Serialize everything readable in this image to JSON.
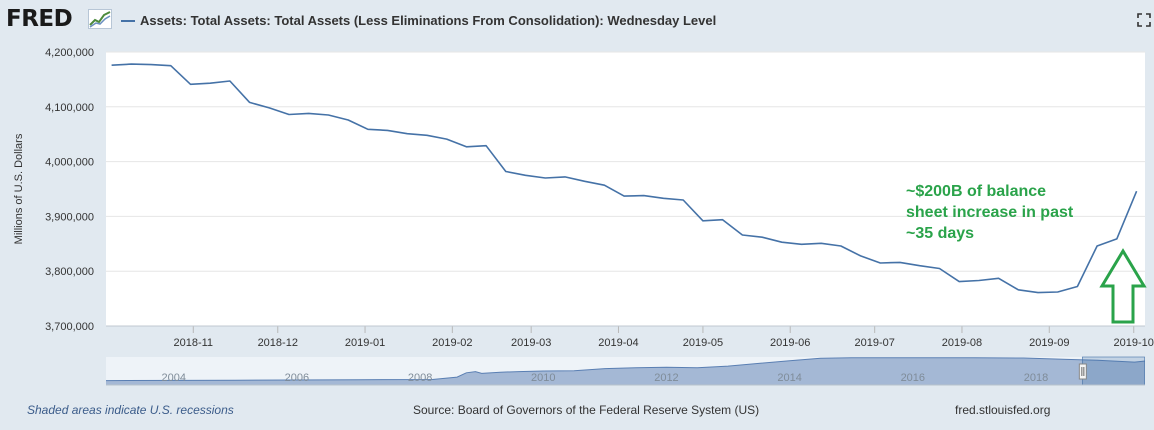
{
  "logo": {
    "text": "FRED"
  },
  "icons": [
    "fred-graph-icon",
    "expand-icon",
    "navigator-handle-icon",
    "up-arrow-icon"
  ],
  "colors": {
    "series": "#4572a7",
    "background": "#e1e9f0",
    "plot_background": "#ffffff",
    "annotation": "#2aa34a",
    "navigator_fill": "#8ba4c9"
  },
  "chart_data": {
    "type": "line",
    "title": "",
    "series": [
      {
        "name": "Assets: Total Assets: Total Assets (Less Eliminations From Consolidation): Wednesday Level",
        "x": [
          "2018-10-03",
          "2018-10-10",
          "2018-10-17",
          "2018-10-24",
          "2018-10-31",
          "2018-11-07",
          "2018-11-14",
          "2018-11-21",
          "2018-11-28",
          "2018-12-05",
          "2018-12-12",
          "2018-12-19",
          "2018-12-26",
          "2019-01-02",
          "2019-01-09",
          "2019-01-16",
          "2019-01-23",
          "2019-01-30",
          "2019-02-06",
          "2019-02-13",
          "2019-02-20",
          "2019-02-27",
          "2019-03-06",
          "2019-03-13",
          "2019-03-20",
          "2019-03-27",
          "2019-04-03",
          "2019-04-10",
          "2019-04-17",
          "2019-04-24",
          "2019-05-01",
          "2019-05-08",
          "2019-05-15",
          "2019-05-22",
          "2019-05-29",
          "2019-06-05",
          "2019-06-12",
          "2019-06-19",
          "2019-06-26",
          "2019-07-03",
          "2019-07-10",
          "2019-07-17",
          "2019-07-24",
          "2019-07-31",
          "2019-08-07",
          "2019-08-14",
          "2019-08-21",
          "2019-08-28",
          "2019-09-04",
          "2019-09-11",
          "2019-09-18",
          "2019-09-25",
          "2019-10-02"
        ],
        "y": [
          4176000,
          4178000,
          4177000,
          4175000,
          4141000,
          4143000,
          4147000,
          4108000,
          4098000,
          4086000,
          4088000,
          4085000,
          4076000,
          4059000,
          4057000,
          4051000,
          4048000,
          4041000,
          4027000,
          4029000,
          3982000,
          3975000,
          3970000,
          3972000,
          3964000,
          3957000,
          3937000,
          3938000,
          3933000,
          3930000,
          3892000,
          3894000,
          3866000,
          3862000,
          3853000,
          3849000,
          3851000,
          3846000,
          3828000,
          3815000,
          3816000,
          3810000,
          3805000,
          3781000,
          3783000,
          3787000,
          3766000,
          3761000,
          3762000,
          3772000,
          3846000,
          3859000,
          3946000
        ]
      }
    ],
    "ylabel": "Millions of U.S. Dollars",
    "xlabel": "",
    "ylim": [
      3700000,
      4200000
    ],
    "yticks": [
      3700000,
      3800000,
      3900000,
      4000000,
      4100000,
      4200000
    ],
    "ytick_labels": [
      "3,700,000",
      "3,800,000",
      "3,900,000",
      "4,000,000",
      "4,100,000",
      "4,200,000"
    ],
    "xrange": [
      "2018-10-01",
      "2019-10-05"
    ],
    "xtick_labels": [
      "2018-11",
      "2018-12",
      "2019-01",
      "2019-02",
      "2019-03",
      "2019-04",
      "2019-05",
      "2019-06",
      "2019-07",
      "2019-08",
      "2019-09",
      "2019-10"
    ],
    "xtick_dates": [
      "2018-11-01",
      "2018-12-01",
      "2019-01-01",
      "2019-02-01",
      "2019-03-01",
      "2019-04-01",
      "2019-05-01",
      "2019-06-01",
      "2019-07-01",
      "2019-08-01",
      "2019-09-01",
      "2019-10-01"
    ],
    "grid": true,
    "legend": "top-left",
    "annotation": "~$200B  of balance\nsheet increase in past\n~35 days",
    "navigator": {
      "tick_labels": [
        "2004",
        "2006",
        "2008",
        "2010",
        "2012",
        "2014",
        "2016",
        "2018"
      ],
      "tick_years": [
        2004,
        2006,
        2008,
        2010,
        2012,
        2014,
        2016,
        2018
      ],
      "year_range": [
        2002.9,
        2019.77
      ],
      "ylim": [
        0,
        4600000
      ],
      "series": {
        "x": [
          2002.9,
          2005.0,
          2007.0,
          2008.2,
          2008.6,
          2008.75,
          2008.9,
          2009.0,
          2009.3,
          2009.6,
          2010.0,
          2010.5,
          2011.0,
          2011.5,
          2012.0,
          2012.5,
          2013.0,
          2013.5,
          2014.0,
          2014.5,
          2015.0,
          2016.0,
          2017.0,
          2017.8,
          2018.5,
          2019.0,
          2019.6,
          2019.77
        ],
        "y": [
          730000,
          790000,
          870000,
          900000,
          1300000,
          2000000,
          2200000,
          1900000,
          2100000,
          2200000,
          2300000,
          2350000,
          2700000,
          2850000,
          2900000,
          2850000,
          3100000,
          3550000,
          4000000,
          4400000,
          4480000,
          4480000,
          4470000,
          4440000,
          4200000,
          4050000,
          3770000,
          3940000
        ]
      },
      "selected_range": [
        "2018-10-01",
        "2019-10-05"
      ]
    }
  },
  "footer": {
    "recessions": "Shaded areas indicate U.S. recessions",
    "source": "Source: Board of Governors of the Federal Reserve System (US)",
    "site": "fred.stlouisfed.org"
  }
}
